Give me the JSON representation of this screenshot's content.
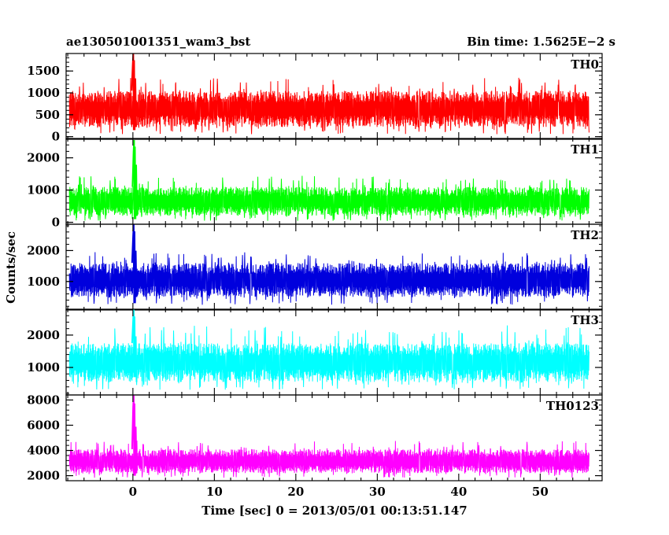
{
  "header": {
    "title": "ae130501001351_wam3_bst",
    "bin_time": "Bin time: 1.5625E−2 s"
  },
  "chart_data": {
    "type": "line",
    "xlabel": "Time [sec] 0 = 2013/05/01 00:13:51.147",
    "ylabel": "Counts/sec",
    "xlim": [
      -8.2,
      57.6
    ],
    "x_range_data": [
      -7.8,
      56.0
    ],
    "xticks": [
      0,
      10,
      20,
      30,
      40,
      50
    ],
    "grid": false,
    "panels": [
      {
        "name": "TH0",
        "color": "#ff0000",
        "ylim": [
          -60,
          1900
        ],
        "yticks": [
          0,
          500,
          1000,
          1500
        ],
        "baseline_low": 220,
        "baseline_high": 1050,
        "typical_peak": 1350,
        "burst": {
          "x": 0.1,
          "peak": 1900,
          "dip": 150
        }
      },
      {
        "name": "TH1",
        "color": "#00ff00",
        "ylim": [
          -60,
          2600
        ],
        "yticks": [
          0,
          1000,
          2000
        ],
        "baseline_low": 200,
        "baseline_high": 1100,
        "typical_peak": 1450,
        "burst": {
          "x": 0.2,
          "peak": 2550,
          "dip": 100
        }
      },
      {
        "name": "TH2",
        "color": "#0000dd",
        "ylim": [
          80,
          2850
        ],
        "yticks": [
          1000,
          2000
        ],
        "baseline_low": 500,
        "baseline_high": 1600,
        "typical_peak": 1950,
        "burst": {
          "x": 0.15,
          "peak": 2850,
          "dip": 300
        }
      },
      {
        "name": "TH3",
        "color": "#00ffff",
        "ylim": [
          150,
          2800
        ],
        "yticks": [
          1000,
          2000
        ],
        "baseline_low": 550,
        "baseline_high": 1750,
        "typical_peak": 2300,
        "burst": {
          "x": 0.15,
          "peak": 2800,
          "dip": 700
        }
      },
      {
        "name": "TH0123",
        "color": "#ff00ff",
        "ylim": [
          1600,
          8400
        ],
        "yticks": [
          2000,
          4000,
          6000,
          8000
        ],
        "baseline_low": 2200,
        "baseline_high": 4100,
        "typical_peak": 4800,
        "burst": {
          "x": 0.15,
          "peak": 8400,
          "dip": 2000
        }
      }
    ]
  }
}
